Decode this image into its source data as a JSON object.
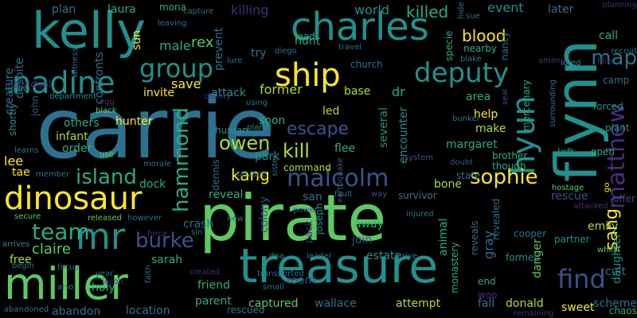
{
  "background": "#000000",
  "palette": [
    "#440154",
    "#472d7b",
    "#3b528b",
    "#2c728e",
    "#21918c",
    "#28ae80",
    "#5ec962",
    "#addc30",
    "#fde725"
  ],
  "words": [
    {
      "text": "carrie"
    },
    {
      "text": "pirate"
    },
    {
      "text": "kelly"
    },
    {
      "text": "charles"
    },
    {
      "text": "treasure"
    },
    {
      "text": "flynn"
    },
    {
      "text": "miller"
    },
    {
      "text": "dinosaur"
    },
    {
      "text": "mr"
    },
    {
      "text": "nadine"
    },
    {
      "text": "deputy"
    },
    {
      "text": "ship"
    },
    {
      "text": "hyun"
    },
    {
      "text": "group"
    },
    {
      "text": "malcolm"
    },
    {
      "text": "find"
    },
    {
      "text": "sophie"
    },
    {
      "text": "matthew"
    },
    {
      "text": "island"
    },
    {
      "text": "team"
    },
    {
      "text": "burke"
    },
    {
      "text": "escape"
    },
    {
      "text": "hammond"
    },
    {
      "text": "kill"
    },
    {
      "text": "owen"
    },
    {
      "text": "map"
    },
    {
      "text": "sang"
    },
    {
      "text": "killed"
    },
    {
      "text": "blood"
    },
    {
      "text": "kang"
    },
    {
      "text": "emily"
    },
    {
      "text": "claire"
    },
    {
      "text": "rex"
    },
    {
      "text": "creature"
    },
    {
      "text": "despite"
    },
    {
      "text": "plan"
    },
    {
      "text": "laura"
    },
    {
      "text": "killing"
    },
    {
      "text": "world"
    },
    {
      "text": "event"
    },
    {
      "text": "lead"
    },
    {
      "text": "later"
    },
    {
      "text": "mona"
    },
    {
      "text": "sun"
    },
    {
      "text": "male"
    },
    {
      "text": "prevent"
    },
    {
      "text": "hunt"
    },
    {
      "text": "try"
    },
    {
      "text": "call"
    },
    {
      "text": "save"
    },
    {
      "text": "invite"
    },
    {
      "text": "former"
    },
    {
      "text": "attack"
    },
    {
      "text": "area"
    },
    {
      "text": "help"
    },
    {
      "text": "make"
    },
    {
      "text": "mercenary"
    },
    {
      "text": "soon"
    },
    {
      "text": "hunter"
    },
    {
      "text": "others"
    },
    {
      "text": "infant"
    },
    {
      "text": "order"
    },
    {
      "text": "lee"
    },
    {
      "text": "park"
    },
    {
      "text": "flee"
    },
    {
      "text": "command"
    },
    {
      "text": "margaret"
    },
    {
      "text": "several"
    },
    {
      "text": "encounter"
    },
    {
      "text": "left"
    },
    {
      "text": "bone"
    },
    {
      "text": "san"
    },
    {
      "text": "dock"
    },
    {
      "text": "reveal"
    },
    {
      "text": "joseph"
    },
    {
      "text": "rescue"
    },
    {
      "text": "revealed"
    },
    {
      "text": "away"
    },
    {
      "text": "crash"
    },
    {
      "text": "free"
    },
    {
      "text": "sarah"
    },
    {
      "text": "join"
    },
    {
      "text": "estate"
    },
    {
      "text": "animal"
    },
    {
      "text": "cult"
    },
    {
      "text": "friend"
    },
    {
      "text": "parent"
    },
    {
      "text": "holy"
    },
    {
      "text": "room"
    },
    {
      "text": "captured"
    },
    {
      "text": "wallace"
    },
    {
      "text": "attempt"
    },
    {
      "text": "fall"
    },
    {
      "text": "donald"
    },
    {
      "text": "sweet"
    },
    {
      "text": "abandon"
    },
    {
      "text": "location"
    },
    {
      "text": "rescued"
    },
    {
      "text": "woo"
    },
    {
      "text": "end"
    },
    {
      "text": "led"
    },
    {
      "text": "dr"
    },
    {
      "text": "base"
    },
    {
      "text": "nancy"
    },
    {
      "text": "specie"
    },
    {
      "text": "nearby"
    },
    {
      "text": "human"
    },
    {
      "text": "colony"
    },
    {
      "text": "dennis"
    },
    {
      "text": "confronts"
    },
    {
      "text": "shortly"
    },
    {
      "text": "john"
    },
    {
      "text": "tae"
    },
    {
      "text": "gray"
    },
    {
      "text": "brother"
    },
    {
      "text": "though"
    },
    {
      "text": "camp"
    },
    {
      "text": "danger"
    },
    {
      "text": "daughter"
    },
    {
      "text": "chaos"
    },
    {
      "text": "monastery"
    },
    {
      "text": "forced"
    },
    {
      "text": "plant"
    },
    {
      "text": "open"
    },
    {
      "text": "recruit"
    },
    {
      "text": "film"
    },
    {
      "text": "lured"
    },
    {
      "text": "among"
    },
    {
      "text": "planning"
    },
    {
      "text": "hide"
    },
    {
      "text": "sue"
    },
    {
      "text": "travel"
    },
    {
      "text": "church"
    },
    {
      "text": "blake"
    },
    {
      "text": "diego"
    },
    {
      "text": "lure"
    },
    {
      "text": "capture"
    },
    {
      "text": "leaving"
    },
    {
      "text": "witness"
    },
    {
      "text": "glenn"
    },
    {
      "text": "individual"
    },
    {
      "text": "department"
    },
    {
      "text": "egg"
    },
    {
      "text": "black"
    },
    {
      "text": "county"
    },
    {
      "text": "using"
    },
    {
      "text": "planet"
    },
    {
      "text": "use"
    },
    {
      "text": "learns"
    },
    {
      "text": "member"
    },
    {
      "text": "morale"
    },
    {
      "text": "salvage"
    },
    {
      "text": "sister"
    },
    {
      "text": "earthquake"
    },
    {
      "text": "system"
    },
    {
      "text": "doubt"
    },
    {
      "text": "bunker"
    },
    {
      "text": "seal"
    },
    {
      "text": "surrounding"
    },
    {
      "text": "state"
    },
    {
      "text": "fault"
    },
    {
      "text": "way"
    },
    {
      "text": "survivor"
    },
    {
      "text": "hostage"
    },
    {
      "text": "offer"
    },
    {
      "text": "attacked"
    },
    {
      "text": "go"
    },
    {
      "text": "secure"
    },
    {
      "text": "released"
    },
    {
      "text": "however"
    },
    {
      "text": "force"
    },
    {
      "text": "sin"
    },
    {
      "text": "new"
    },
    {
      "text": "power"
    },
    {
      "text": "pack"
    },
    {
      "text": "injured"
    },
    {
      "text": "reveals"
    },
    {
      "text": "cooper"
    },
    {
      "text": "partner"
    },
    {
      "text": "whilst"
    },
    {
      "text": "formed"
    },
    {
      "text": "arrives"
    },
    {
      "text": "begin"
    },
    {
      "text": "focus"
    },
    {
      "text": "year"
    },
    {
      "text": "jacob"
    },
    {
      "text": "also"
    },
    {
      "text": "faith"
    },
    {
      "text": "created"
    },
    {
      "text": "transported"
    },
    {
      "text": "small"
    },
    {
      "text": "dna"
    },
    {
      "text": "leader"
    },
    {
      "text": "arrive"
    },
    {
      "text": "abandoned"
    },
    {
      "text": "remaining"
    },
    {
      "text": "scheme"
    },
    {
      "text": "gun"
    }
  ]
}
